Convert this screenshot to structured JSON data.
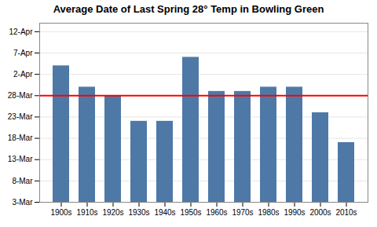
{
  "chart_data": {
    "type": "bar",
    "title": "Average Date of Last Spring 28° Temp in Bowling Green",
    "categories": [
      "1900s",
      "1910s",
      "1920s",
      "1930s",
      "1940s",
      "1950s",
      "1960s",
      "1970s",
      "1980s",
      "1990s",
      "2000s",
      "2010s"
    ],
    "values": [
      94,
      89,
      87,
      81,
      81,
      96,
      88,
      88,
      89,
      89,
      83,
      76
    ],
    "color": "#4E79A7",
    "ylim": [
      62,
      104
    ],
    "yticks": [
      {
        "value": 62,
        "label": "3-Mar"
      },
      {
        "value": 67,
        "label": "8-Mar"
      },
      {
        "value": 72,
        "label": "13-Mar"
      },
      {
        "value": 77,
        "label": "18-Mar"
      },
      {
        "value": 82,
        "label": "23-Mar"
      },
      {
        "value": 87,
        "label": "28-Mar"
      },
      {
        "value": 92,
        "label": "2-Apr"
      },
      {
        "value": 97,
        "label": "7-Apr"
      },
      {
        "value": 102,
        "label": "12-Apr"
      }
    ],
    "grid": true,
    "reference_lines": [
      {
        "value": 87,
        "color": "#FF0000"
      }
    ]
  }
}
